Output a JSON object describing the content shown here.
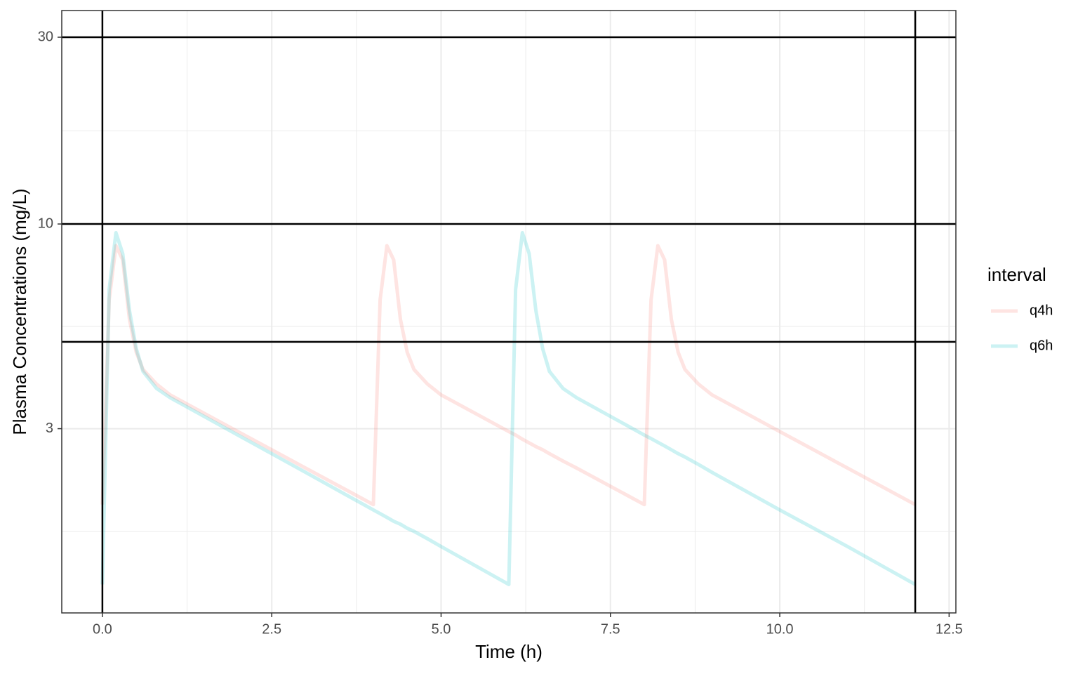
{
  "chart_data": {
    "type": "line",
    "xlabel": "Time (h)",
    "ylabel": "Plasma Concentrations (mg/L)",
    "legend_title": "interval",
    "legend_position": "right",
    "y_log_scale": true,
    "grid": true,
    "alpha": 0.2,
    "xlim": [
      -0.6,
      12.6
    ],
    "ylim": [
      1.015,
      35.1
    ],
    "xticks": [
      {
        "value": 0,
        "label": "0.0"
      },
      {
        "value": 2.5,
        "label": "2.5"
      },
      {
        "value": 5,
        "label": "5.0"
      },
      {
        "value": 7.5,
        "label": "7.5"
      },
      {
        "value": 10,
        "label": "10.0"
      },
      {
        "value": 12.5,
        "label": "12.5"
      }
    ],
    "yticks": [
      3,
      10,
      30
    ],
    "x_minor_ticks": [
      1.25,
      3.75,
      6.25,
      8.75,
      11.25
    ],
    "y_minor_ticks": [
      1.64,
      5.48,
      17.3
    ],
    "hlines": [
      5,
      10,
      30
    ],
    "vlines": [
      0,
      12
    ],
    "x": [
      0,
      0.1,
      0.2,
      0.3,
      0.4,
      0.5,
      0.6,
      0.8,
      1,
      2,
      3,
      4,
      4.1,
      4.2,
      4.3,
      4.4,
      4.5,
      4.6,
      4.8,
      5,
      6,
      6.1,
      6.2,
      6.3,
      6.4,
      6.5,
      6.6,
      6.8,
      7,
      8,
      8.1,
      8.2,
      8.3,
      8.4,
      8.5,
      8.6,
      8.8,
      9,
      10,
      11,
      12
    ],
    "series": [
      {
        "name": "q4h",
        "color": "#F8766D",
        "values": [
          1.92,
          6.4,
          8.8,
          8.1,
          5.7,
          4.7,
          4.25,
          3.9,
          3.66,
          2.95,
          2.38,
          1.92,
          6.4,
          8.8,
          8.1,
          5.7,
          4.7,
          4.25,
          3.9,
          3.66,
          2.95,
          2.89,
          2.82,
          2.76,
          2.7,
          2.65,
          2.59,
          2.48,
          2.38,
          1.92,
          6.4,
          8.8,
          8.1,
          5.7,
          4.7,
          4.25,
          3.9,
          3.66,
          2.95,
          2.38,
          1.92
        ]
      },
      {
        "name": "q6h",
        "color": "#00BFC4",
        "values": [
          1.2,
          6.8,
          9.5,
          8.4,
          6.0,
          4.8,
          4.2,
          3.8,
          3.6,
          2.89,
          2.32,
          1.86,
          1.82,
          1.78,
          1.74,
          1.71,
          1.67,
          1.64,
          1.57,
          1.5,
          1.2,
          6.8,
          9.5,
          8.4,
          6.0,
          4.8,
          4.2,
          3.8,
          3.6,
          2.89,
          2.83,
          2.77,
          2.71,
          2.65,
          2.59,
          2.54,
          2.43,
          2.32,
          1.86,
          1.5,
          1.2
        ]
      }
    ]
  }
}
